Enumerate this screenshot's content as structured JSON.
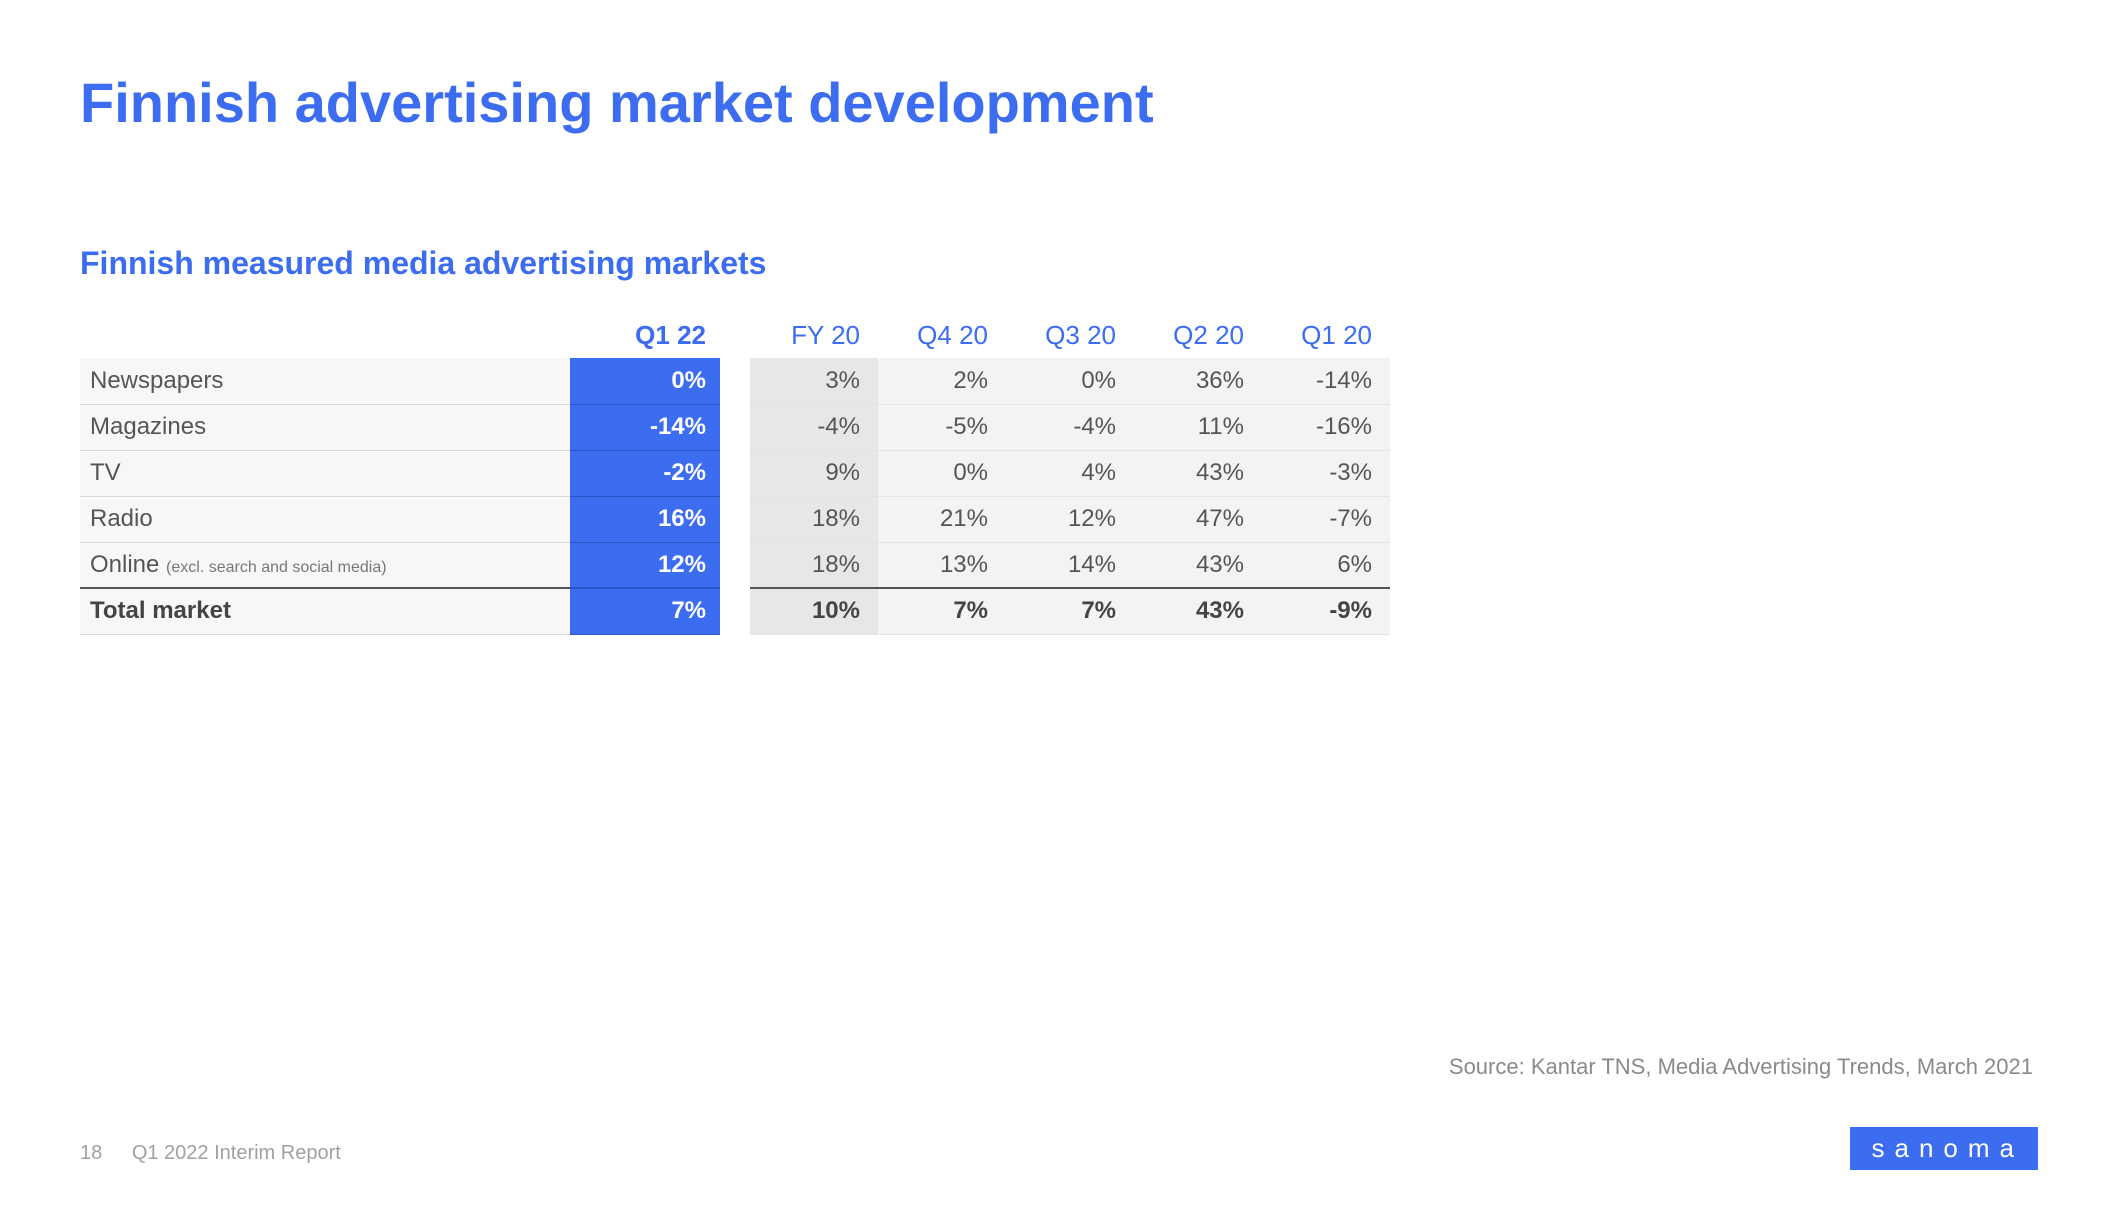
{
  "title": "Finnish advertising market development",
  "subtitle": "Finnish measured media advertising markets",
  "colors": {
    "accent": "#3c6cf0",
    "text_muted": "#555555",
    "bg_fy": "#e7e7e7",
    "bg_q": "#f3f3f3",
    "bg_row": "#f7f7f7",
    "white": "#ffffff"
  },
  "table": {
    "type": "table",
    "left_header": "Q1 22",
    "right_headers": [
      "FY 20",
      "Q4 20",
      "Q3 20",
      "Q2 20",
      "Q1 20"
    ],
    "rows": [
      {
        "label": "Newspapers",
        "sublabel": "",
        "q122": "0%",
        "vals": [
          "3%",
          "2%",
          "0%",
          "36%",
          "-14%"
        ]
      },
      {
        "label": "Magazines",
        "sublabel": "",
        "q122": "-14%",
        "vals": [
          "-4%",
          "-5%",
          "-4%",
          "11%",
          "-16%"
        ]
      },
      {
        "label": "TV",
        "sublabel": "",
        "q122": "-2%",
        "vals": [
          "9%",
          "0%",
          "4%",
          "43%",
          "-3%"
        ]
      },
      {
        "label": "Radio",
        "sublabel": "",
        "q122": "16%",
        "vals": [
          "18%",
          "21%",
          "12%",
          "47%",
          "-7%"
        ]
      },
      {
        "label": "Online ",
        "sublabel": "(excl. search and social media)",
        "q122": "12%",
        "vals": [
          "18%",
          "13%",
          "14%",
          "43%",
          "6%"
        ]
      }
    ],
    "total": {
      "label": "Total market",
      "q122": "7%",
      "vals": [
        "10%",
        "7%",
        "7%",
        "43%",
        "-9%"
      ]
    }
  },
  "source": "Source: Kantar TNS, Media Advertising Trends, March 2021",
  "footer": {
    "page": "18",
    "doc": "Q1 2022 Interim Report"
  },
  "logo": "sanoma"
}
